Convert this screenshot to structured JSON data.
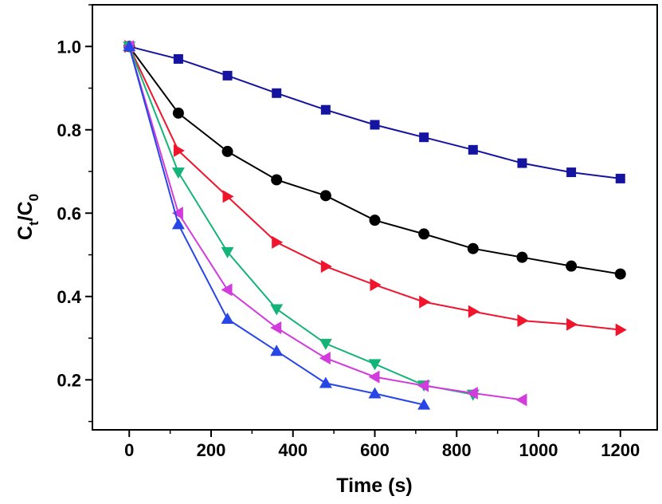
{
  "chart_data": {
    "type": "line",
    "title": "",
    "xlabel": "Time (s)",
    "ylabel": {
      "base1": "C",
      "sub1": "t",
      "sep": "/",
      "base2": "C",
      "sub2": "0"
    },
    "xlim": [
      -90,
      1290
    ],
    "ylim": [
      0.08,
      1.1
    ],
    "xticks": [
      0,
      200,
      400,
      600,
      800,
      1000,
      1200
    ],
    "yticks": [
      0.2,
      0.4,
      0.6,
      0.8,
      1.0
    ],
    "ytick_labels": [
      "0.2",
      "0.4",
      "0.6",
      "0.8",
      "1.0"
    ],
    "grid": false,
    "legend": "none",
    "series": [
      {
        "color": "#1414a0",
        "marker": "square",
        "x": [
          0,
          120,
          240,
          360,
          480,
          600,
          720,
          840,
          960,
          1080,
          1200
        ],
        "y": [
          1.0,
          0.97,
          0.93,
          0.888,
          0.848,
          0.812,
          0.782,
          0.752,
          0.72,
          0.698,
          0.683
        ]
      },
      {
        "color": "#000000",
        "marker": "circle",
        "x": [
          0,
          120,
          240,
          360,
          480,
          600,
          720,
          840,
          960,
          1080,
          1200
        ],
        "y": [
          1.0,
          0.84,
          0.748,
          0.68,
          0.642,
          0.583,
          0.55,
          0.515,
          0.494,
          0.473,
          0.454
        ]
      },
      {
        "color": "#f0142d",
        "marker": "triangle-right",
        "x": [
          0,
          120,
          240,
          360,
          480,
          600,
          720,
          840,
          960,
          1080,
          1200
        ],
        "y": [
          1.0,
          0.75,
          0.64,
          0.53,
          0.472,
          0.428,
          0.387,
          0.364,
          0.342,
          0.333,
          0.32
        ]
      },
      {
        "color": "#14b478",
        "marker": "triangle-down",
        "x": [
          0,
          120,
          240,
          360,
          480,
          600,
          720,
          840
        ],
        "y": [
          1.0,
          0.698,
          0.507,
          0.37,
          0.287,
          0.238,
          0.187,
          0.165
        ]
      },
      {
        "color": "#d23cdc",
        "marker": "triangle-left",
        "x": [
          0,
          120,
          240,
          360,
          480,
          600,
          720,
          840,
          960
        ],
        "y": [
          1.0,
          0.6,
          0.416,
          0.325,
          0.252,
          0.207,
          0.186,
          0.168,
          0.152
        ]
      },
      {
        "color": "#2846e6",
        "marker": "triangle-up",
        "x": [
          0,
          120,
          240,
          360,
          480,
          600,
          720
        ],
        "y": [
          1.0,
          0.573,
          0.346,
          0.269,
          0.192,
          0.167,
          0.14
        ]
      }
    ]
  }
}
